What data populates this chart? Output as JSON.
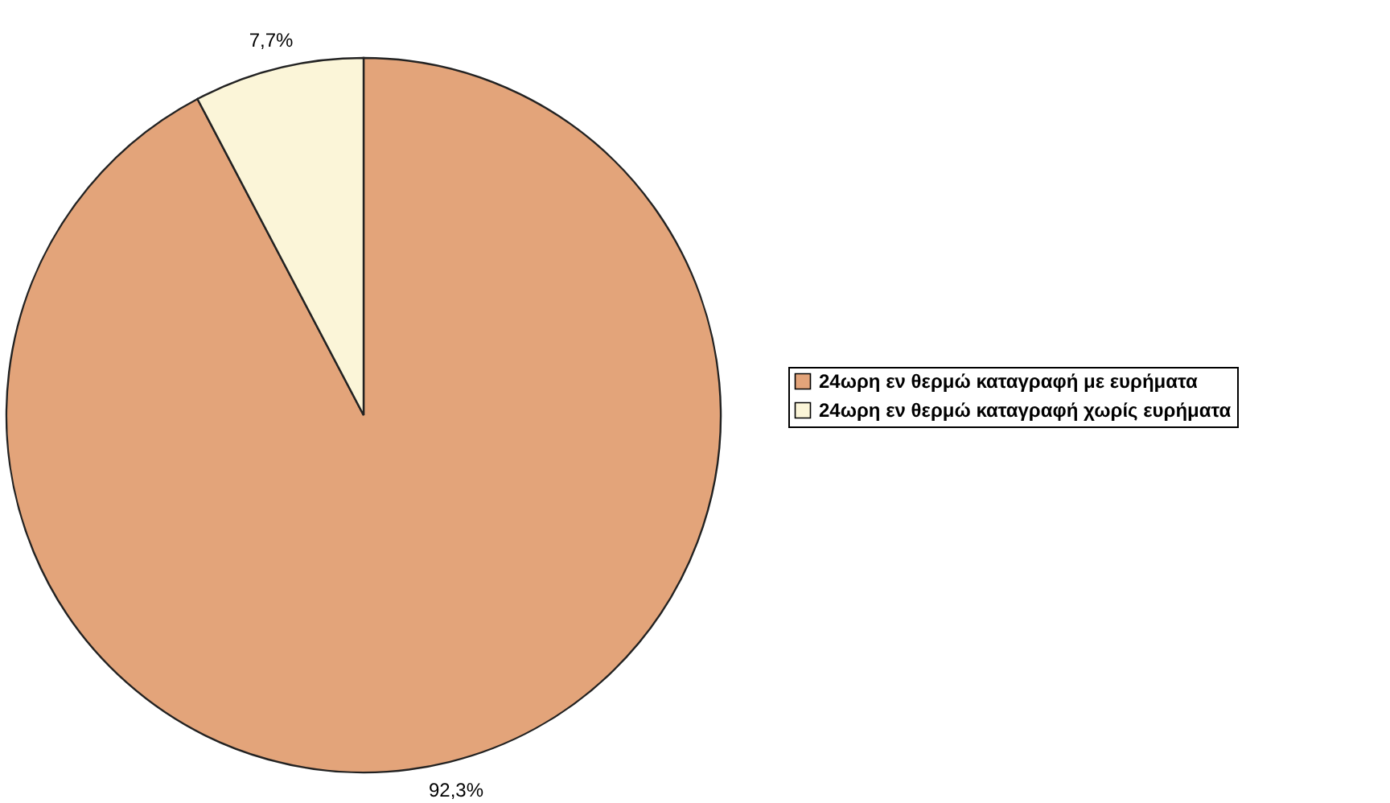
{
  "chart_data": {
    "type": "pie",
    "categories": [
      "24ωρη εν θερμώ καταγραφή με ευρήματα",
      "24ωρη εν θερμώ καταγραφή χωρίς ευρήματα"
    ],
    "values": [
      92.3,
      7.7
    ],
    "colors": [
      "#e3a47a",
      "#fbf5d8"
    ],
    "value_labels": [
      "92,3%",
      "7,7%"
    ],
    "legend": "right"
  }
}
